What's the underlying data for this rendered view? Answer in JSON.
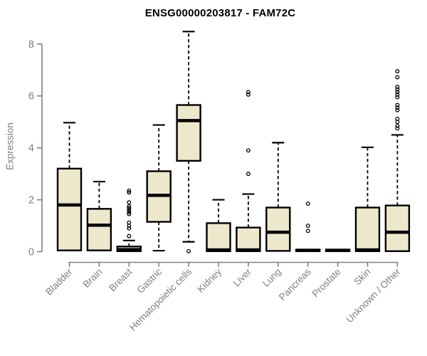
{
  "page": {
    "background": "#ffffff"
  },
  "chart_data": {
    "type": "boxplot",
    "title": "ENSG00000203817 - FAM72C",
    "ylabel": "Expression",
    "xlabel": "",
    "ylim": [
      0,
      8.5
    ],
    "yticks": [
      0,
      2,
      4,
      6,
      8
    ],
    "grid": false,
    "legend": "none",
    "categories": [
      "Bladder",
      "Brain",
      "Breast",
      "Gastric",
      "Hematopoietic cells",
      "Kidney",
      "Liver",
      "Lung",
      "Pancreas",
      "Prostate",
      "Skin",
      "Unknown / Other"
    ],
    "series": [
      {
        "category": "Bladder",
        "whisker_low": 0.05,
        "q1": 0.05,
        "median": 1.8,
        "q3": 3.2,
        "whisker_high": 4.97,
        "outliers": []
      },
      {
        "category": "Brain",
        "whisker_low": 0.05,
        "q1": 0.05,
        "median": 1.02,
        "q3": 1.65,
        "whisker_high": 2.7,
        "outliers": []
      },
      {
        "category": "Breast",
        "whisker_low": 0.02,
        "q1": 0.02,
        "median": 0.08,
        "q3": 0.2,
        "whisker_high": 0.43,
        "outliers": [
          2.35,
          2.28,
          1.9,
          1.75,
          1.68,
          1.6,
          1.52,
          1.45,
          1.12,
          1.0,
          0.9,
          0.6
        ]
      },
      {
        "category": "Gastric",
        "whisker_low": 0.04,
        "q1": 1.15,
        "median": 2.17,
        "q3": 3.1,
        "whisker_high": 4.88,
        "outliers": []
      },
      {
        "category": "Hematopoietic cells",
        "whisker_low": 0.38,
        "q1": 3.5,
        "median": 5.05,
        "q3": 5.65,
        "whisker_high": 8.48,
        "outliers": [
          0.02
        ]
      },
      {
        "category": "Kidney",
        "whisker_low": 0.02,
        "q1": 0.02,
        "median": 0.07,
        "q3": 1.1,
        "whisker_high": 2.0,
        "outliers": []
      },
      {
        "category": "Liver",
        "whisker_low": 0.02,
        "q1": 0.02,
        "median": 0.07,
        "q3": 0.93,
        "whisker_high": 2.22,
        "outliers": [
          6.15,
          6.05,
          3.9,
          3.0
        ]
      },
      {
        "category": "Lung",
        "whisker_low": 0.03,
        "q1": 0.03,
        "median": 0.75,
        "q3": 1.7,
        "whisker_high": 4.2,
        "outliers": []
      },
      {
        "category": "Pancreas",
        "whisker_low": 0.02,
        "q1": 0.02,
        "median": 0.05,
        "q3": 0.08,
        "whisker_high": 0.08,
        "outliers": [
          1.85,
          1.0,
          0.8
        ]
      },
      {
        "category": "Prostate",
        "whisker_low": 0.02,
        "q1": 0.02,
        "median": 0.05,
        "q3": 0.08,
        "whisker_high": 0.08,
        "outliers": []
      },
      {
        "category": "Skin",
        "whisker_low": 0.02,
        "q1": 0.02,
        "median": 0.07,
        "q3": 1.7,
        "whisker_high": 4.02,
        "outliers": []
      },
      {
        "category": "Unknown / Other",
        "whisker_low": 0.02,
        "q1": 0.02,
        "median": 0.75,
        "q3": 1.78,
        "whisker_high": 4.5,
        "outliers": [
          6.95,
          6.72,
          6.35,
          6.25,
          6.15,
          6.05,
          5.95,
          5.65,
          5.55,
          5.45,
          5.12,
          5.0,
          4.85,
          4.75
        ]
      }
    ],
    "colors": {
      "box_fill": "#ede8cb",
      "box_stroke": "#000000",
      "median": "#000000",
      "whisker": "#000000",
      "outlier_stroke": "#000000",
      "axis": "#7f7f7f",
      "tick_label": "#7f7f7f",
      "title": "#000000"
    }
  }
}
